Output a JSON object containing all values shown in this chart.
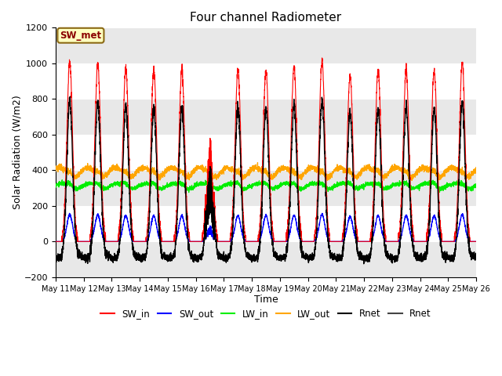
{
  "title": "Four channel Radiometer",
  "xlabel": "Time",
  "ylabel": "Solar Radiation (W/m2)",
  "ylim": [
    -200,
    1200
  ],
  "annotation_text": "SW_met",
  "x_tick_labels": [
    "May 11",
    "May 12",
    "May 13",
    "May 14",
    "May 15",
    "May 16",
    "May 17",
    "May 18",
    "May 19",
    "May 20",
    "May 21",
    "May 22",
    "May 23",
    "May 24",
    "May 25",
    "May 26"
  ],
  "colors": {
    "SW_in": "#ff0000",
    "SW_out": "#0000ff",
    "LW_in": "#00ee00",
    "LW_out": "#ffa500",
    "Rnet": "#000000",
    "Rnet2": "#444444"
  },
  "plot_bg_color": "#e8e8e8",
  "num_days": 15,
  "yticks": [
    -200,
    0,
    200,
    400,
    600,
    800,
    1000,
    1200
  ]
}
